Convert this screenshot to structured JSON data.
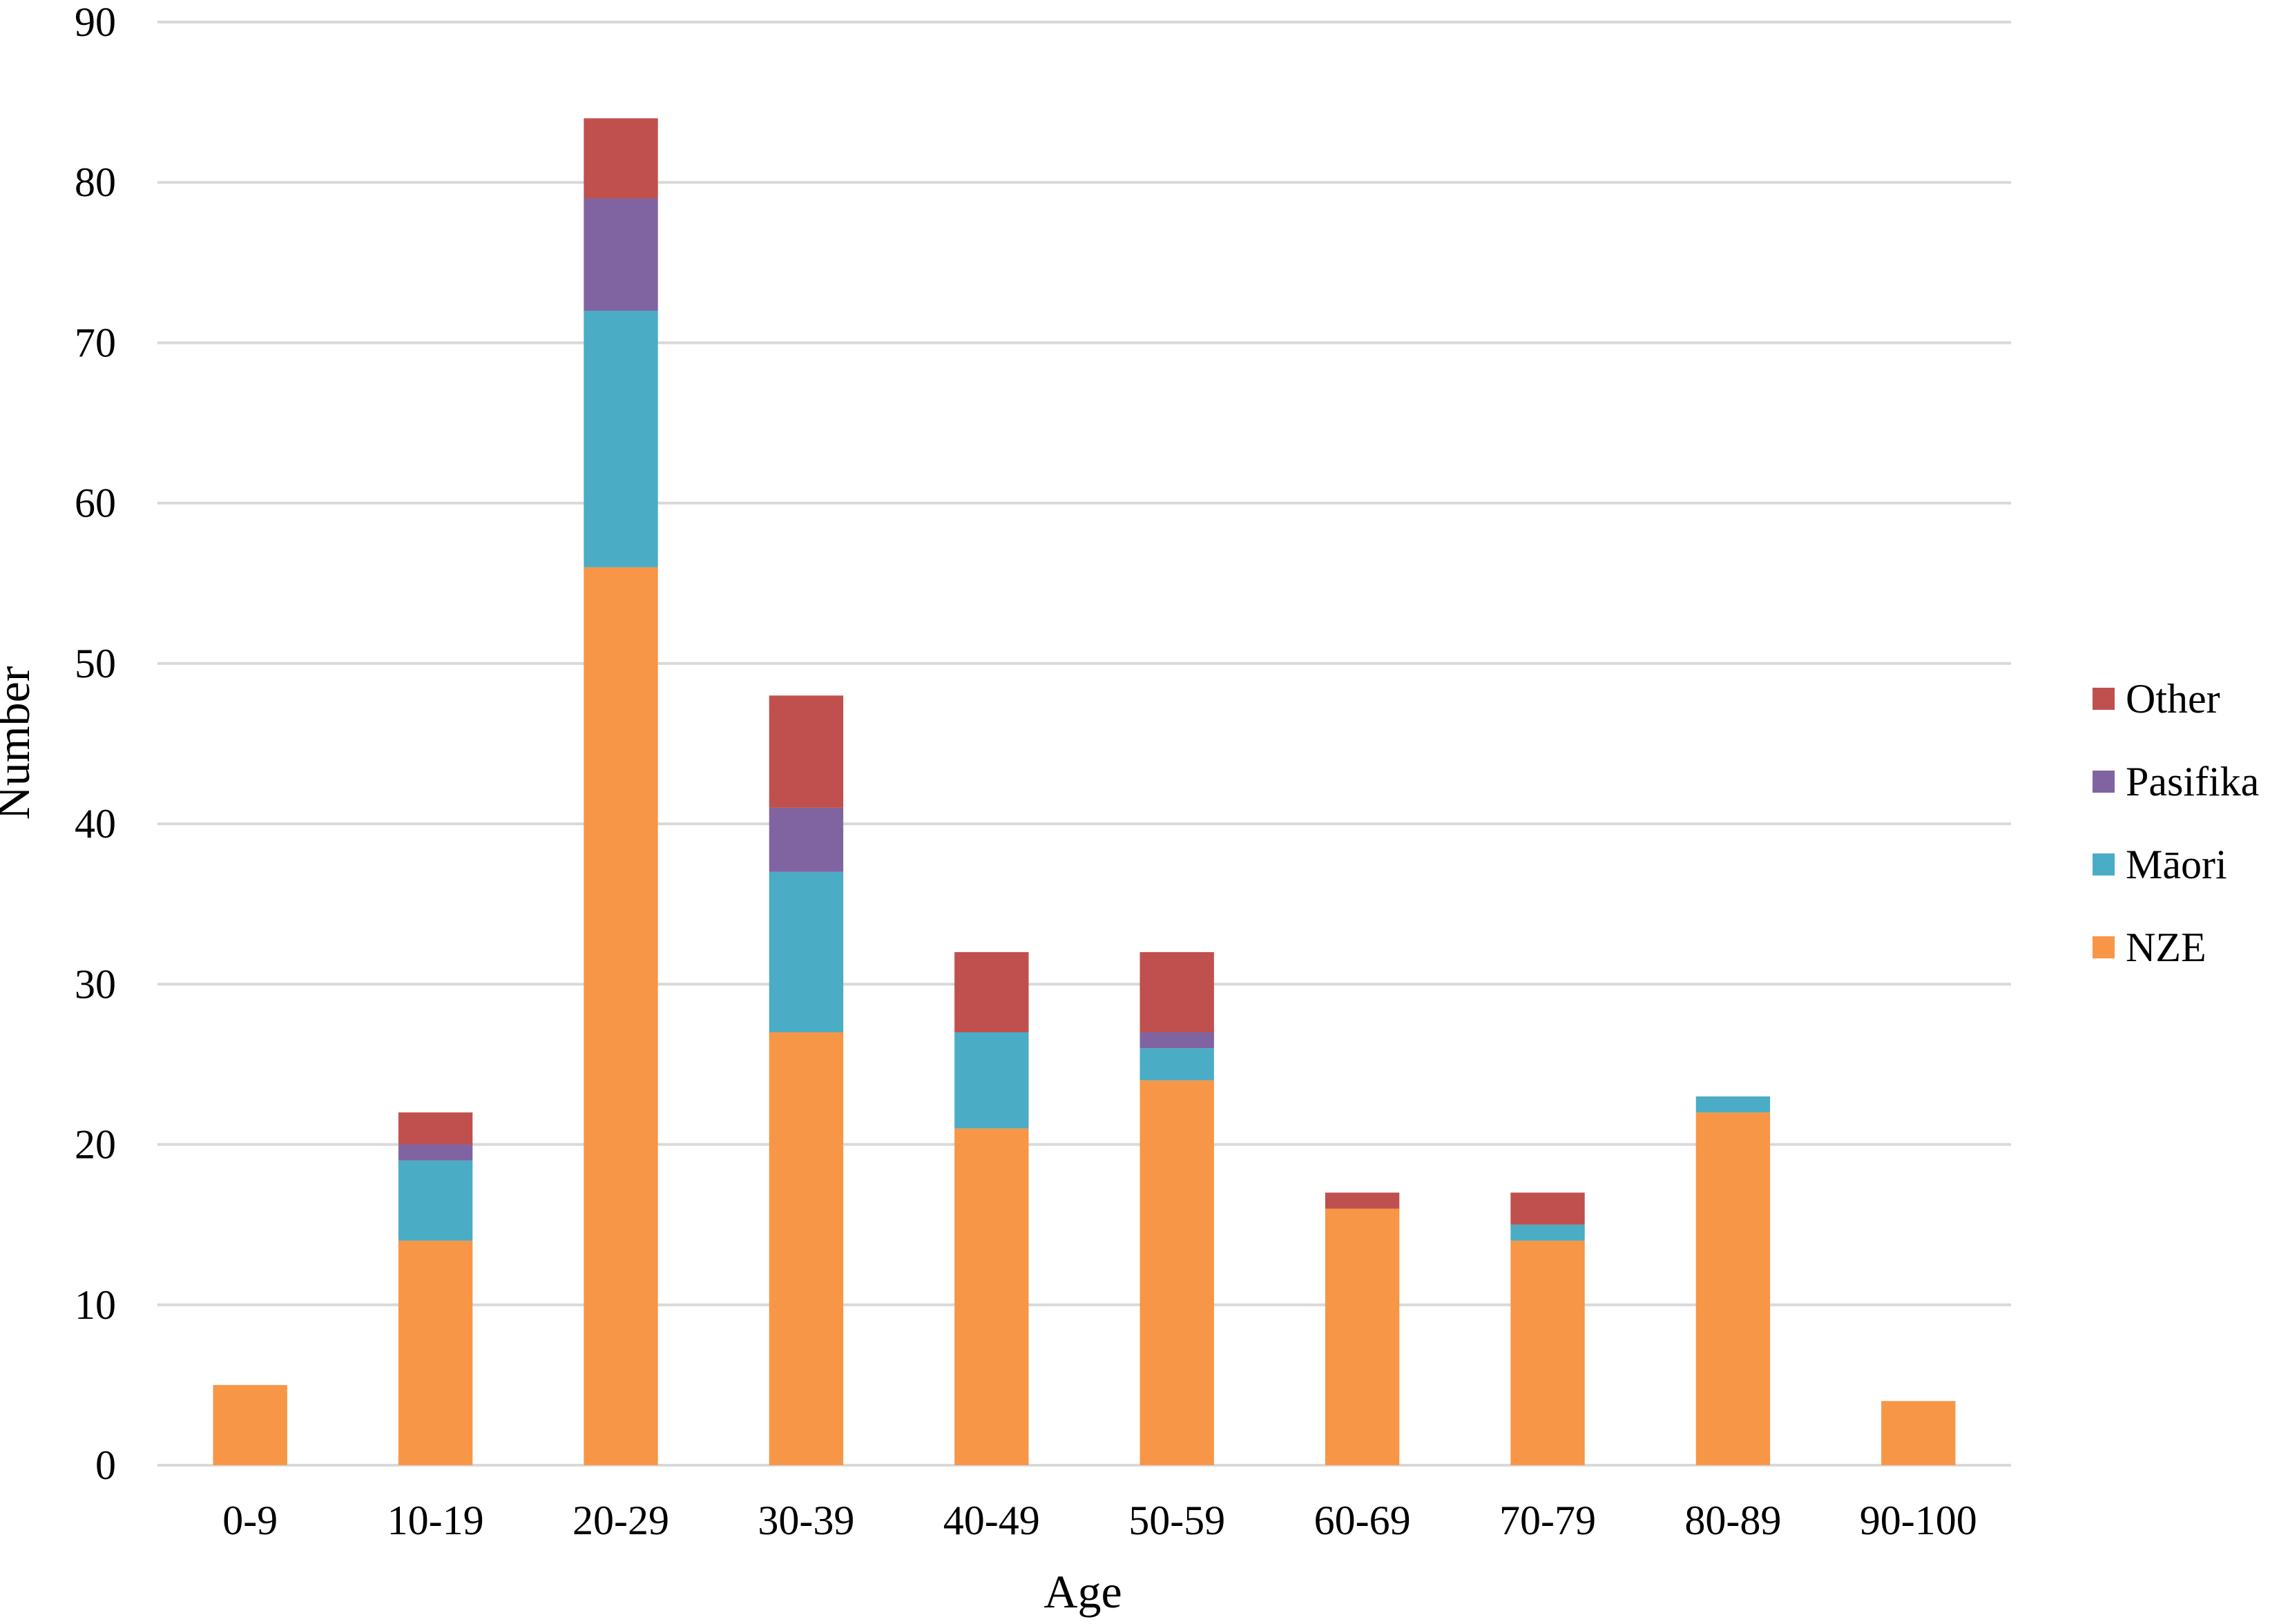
{
  "chart_data": {
    "type": "bar",
    "stacked": true,
    "xlabel": "Age",
    "ylabel": "Number",
    "ylim": [
      0,
      90
    ],
    "yticks": [
      0,
      10,
      20,
      30,
      40,
      50,
      60,
      70,
      80,
      90
    ],
    "grid": true,
    "legend_position": "right",
    "categories": [
      "0-9",
      "10-19",
      "20-29",
      "30-39",
      "40-49",
      "50-59",
      "60-69",
      "70-79",
      "80-89",
      "90-100"
    ],
    "series": [
      {
        "name": "NZE",
        "color": "#F79646",
        "values": [
          5,
          14,
          56,
          27,
          21,
          24,
          16,
          14,
          22,
          4
        ]
      },
      {
        "name": "Māori",
        "color": "#4BACC6",
        "values": [
          0,
          5,
          16,
          10,
          6,
          2,
          0,
          1,
          1,
          0
        ]
      },
      {
        "name": "Pasifika",
        "color": "#8064A2",
        "values": [
          0,
          1,
          7,
          4,
          0,
          1,
          0,
          0,
          0,
          0
        ]
      },
      {
        "name": "Other",
        "color": "#C0504D",
        "values": [
          0,
          2,
          5,
          7,
          5,
          5,
          1,
          2,
          0,
          0
        ]
      }
    ],
    "legend_order": [
      "Other",
      "Pasifika",
      "Māori",
      "NZE"
    ]
  }
}
